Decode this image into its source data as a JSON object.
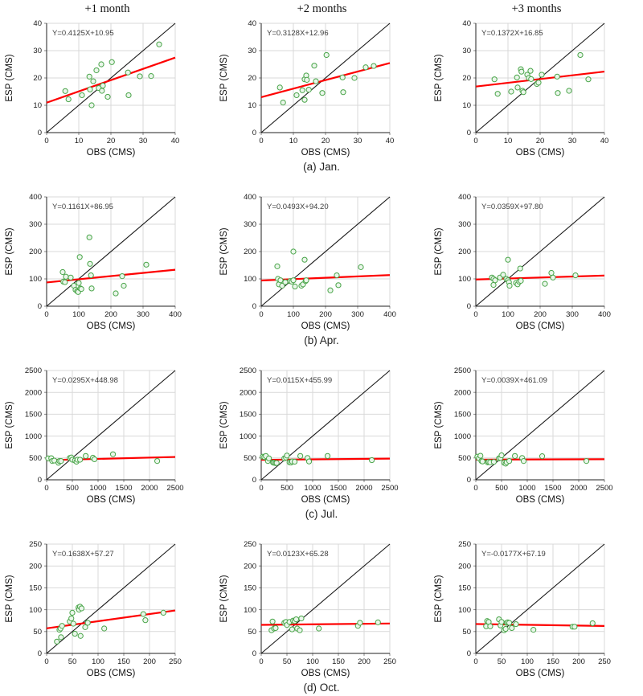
{
  "figure": {
    "column_titles": [
      "+1 month",
      "+2 months",
      "+3 months"
    ],
    "xlabel": "OBS (CMS)",
    "ylabel": "ESP (CMS)",
    "colors": {
      "regression_line": "#fe0000",
      "identity_line": "#1a1a1a",
      "point_stroke": "#4aa54a",
      "point_fill": "#eaf6ea",
      "grid": "#d9d9d9",
      "axis": "#222222",
      "tick": "#888888",
      "equation_text": "#3d3d3d"
    }
  },
  "chart_data": [
    {
      "caption": "(a) Jan.",
      "xlim": [
        0,
        40
      ],
      "ylim": [
        0,
        40
      ],
      "ticks": [
        0,
        10,
        20,
        30,
        40
      ],
      "panels": [
        {
          "type": "scatter",
          "lead": "+1 month",
          "equation": "Y=0.4125X+10.95",
          "slope": 0.4125,
          "intercept": 10.95,
          "points": [
            [
              5.8,
              15.2
            ],
            [
              6.8,
              12.2
            ],
            [
              11,
              13.7
            ],
            [
              13.3,
              20.5
            ],
            [
              13.5,
              15.8
            ],
            [
              14,
              10
            ],
            [
              14.5,
              18.8
            ],
            [
              15.5,
              22.8
            ],
            [
              16.2,
              16.3
            ],
            [
              17,
              25
            ],
            [
              17.2,
              15.3
            ],
            [
              17.5,
              17.2
            ],
            [
              19,
              13.1
            ],
            [
              20.3,
              25.8
            ],
            [
              25.3,
              22
            ],
            [
              25.5,
              13.7
            ],
            [
              29,
              20.6
            ],
            [
              32.5,
              20.7
            ],
            [
              35,
              32.3
            ]
          ]
        },
        {
          "type": "scatter",
          "lead": "+2 months",
          "equation": "Y=0.3128X+12.96",
          "slope": 0.3128,
          "intercept": 12.96,
          "points": [
            [
              5.8,
              16.5
            ],
            [
              6.8,
              11
            ],
            [
              11,
              13.7
            ],
            [
              12.8,
              15.5
            ],
            [
              13.5,
              12
            ],
            [
              13.5,
              19.5
            ],
            [
              14,
              20.9
            ],
            [
              14.2,
              19.3
            ],
            [
              14.8,
              15.7
            ],
            [
              16.5,
              24.5
            ],
            [
              17,
              18.8
            ],
            [
              19,
              14.5
            ],
            [
              20.3,
              28.4
            ],
            [
              25.3,
              20.2
            ],
            [
              25.5,
              14.8
            ],
            [
              29,
              20
            ],
            [
              32.5,
              23.9
            ],
            [
              35,
              24.4
            ]
          ]
        },
        {
          "type": "scatter",
          "lead": "+3 months",
          "equation": "Y=0.1372X+16.85",
          "slope": 0.1372,
          "intercept": 16.85,
          "points": [
            [
              5.8,
              19.5
            ],
            [
              6.8,
              14.2
            ],
            [
              11,
              15
            ],
            [
              12.8,
              20.2
            ],
            [
              13,
              16.5
            ],
            [
              14,
              23.2
            ],
            [
              14.2,
              22.3
            ],
            [
              14.5,
              15.3
            ],
            [
              14.8,
              14.8
            ],
            [
              16,
              21.2
            ],
            [
              16.5,
              20
            ],
            [
              17,
              22.6
            ],
            [
              17.2,
              19.6
            ],
            [
              19,
              17.8
            ],
            [
              19.5,
              18.3
            ],
            [
              20.5,
              21.2
            ],
            [
              25.3,
              20.5
            ],
            [
              25.5,
              14.5
            ],
            [
              29,
              15.3
            ],
            [
              32.5,
              28.4
            ],
            [
              35,
              19.5
            ]
          ]
        }
      ]
    },
    {
      "caption": "(b) Apr.",
      "xlim": [
        0,
        400
      ],
      "ylim": [
        0,
        400
      ],
      "ticks": [
        0,
        100,
        200,
        300,
        400
      ],
      "panels": [
        {
          "type": "scatter",
          "lead": "+1 month",
          "equation": "Y=0.1161X+86.95",
          "slope": 0.1161,
          "intercept": 86.95,
          "points": [
            [
              50,
              125
            ],
            [
              52,
              90
            ],
            [
              57,
              88
            ],
            [
              60,
              108
            ],
            [
              75,
              105
            ],
            [
              85,
              75
            ],
            [
              90,
              60
            ],
            [
              95,
              55
            ],
            [
              98,
              52
            ],
            [
              100,
              85
            ],
            [
              103,
              180
            ],
            [
              105,
              65
            ],
            [
              108,
              63
            ],
            [
              133,
              252
            ],
            [
              135,
              155
            ],
            [
              138,
              113
            ],
            [
              140,
              65
            ],
            [
              215,
              47
            ],
            [
              235,
              110
            ],
            [
              240,
              75
            ],
            [
              310,
              152
            ]
          ]
        },
        {
          "type": "scatter",
          "lead": "+2 months",
          "equation": "Y=0.0493X+94.20",
          "slope": 0.0493,
          "intercept": 94.2,
          "points": [
            [
              50,
              146
            ],
            [
              52,
              100
            ],
            [
              55,
              80
            ],
            [
              60,
              95
            ],
            [
              65,
              75
            ],
            [
              75,
              88
            ],
            [
              90,
              92
            ],
            [
              95,
              90
            ],
            [
              100,
              200
            ],
            [
              100,
              95
            ],
            [
              105,
              72
            ],
            [
              125,
              75
            ],
            [
              130,
              80
            ],
            [
              135,
              170
            ],
            [
              138,
              92
            ],
            [
              140,
              95
            ],
            [
              215,
              58
            ],
            [
              235,
              113
            ],
            [
              240,
              77
            ],
            [
              310,
              143
            ]
          ]
        },
        {
          "type": "scatter",
          "lead": "+3 months",
          "equation": "Y=0.0359X+97.80",
          "slope": 0.0359,
          "intercept": 97.8,
          "points": [
            [
              50,
              105
            ],
            [
              55,
              100
            ],
            [
              55,
              78
            ],
            [
              60,
              95
            ],
            [
              75,
              105
            ],
            [
              85,
              115
            ],
            [
              95,
              100
            ],
            [
              100,
              170
            ],
            [
              100,
              95
            ],
            [
              103,
              88
            ],
            [
              105,
              75
            ],
            [
              125,
              85
            ],
            [
              130,
              80
            ],
            [
              135,
              90
            ],
            [
              138,
              138
            ],
            [
              140,
              93
            ],
            [
              215,
              82
            ],
            [
              235,
              122
            ],
            [
              240,
              105
            ],
            [
              310,
              113
            ]
          ]
        }
      ]
    },
    {
      "caption": "(c) Jul.",
      "xlim": [
        0,
        2500
      ],
      "ylim": [
        0,
        2500
      ],
      "ticks": [
        0,
        500,
        1000,
        1500,
        2000,
        2500
      ],
      "panels": [
        {
          "type": "scatter",
          "lead": "+1 month",
          "equation": "Y=0.0295X+448.98",
          "slope": 0.0295,
          "intercept": 448.98,
          "points": [
            [
              30,
              490
            ],
            [
              90,
              495
            ],
            [
              110,
              430
            ],
            [
              150,
              440
            ],
            [
              230,
              390
            ],
            [
              250,
              430
            ],
            [
              280,
              430
            ],
            [
              450,
              500
            ],
            [
              480,
              510
            ],
            [
              500,
              460
            ],
            [
              550,
              440
            ],
            [
              580,
              415
            ],
            [
              600,
              460
            ],
            [
              650,
              460
            ],
            [
              760,
              545
            ],
            [
              900,
              505
            ],
            [
              930,
              470
            ],
            [
              1290,
              585
            ],
            [
              2150,
              430
            ]
          ]
        },
        {
          "type": "scatter",
          "lead": "+2 months",
          "equation": "Y=0.0115X+455.99",
          "slope": 0.0115,
          "intercept": 455.99,
          "points": [
            [
              30,
              530
            ],
            [
              60,
              520
            ],
            [
              90,
              545
            ],
            [
              130,
              430
            ],
            [
              150,
              490
            ],
            [
              230,
              395
            ],
            [
              250,
              390
            ],
            [
              280,
              380
            ],
            [
              300,
              385
            ],
            [
              450,
              490
            ],
            [
              480,
              510
            ],
            [
              500,
              555
            ],
            [
              550,
              400
            ],
            [
              580,
              395
            ],
            [
              600,
              420
            ],
            [
              650,
              415
            ],
            [
              760,
              545
            ],
            [
              900,
              500
            ],
            [
              930,
              420
            ],
            [
              1290,
              545
            ],
            [
              2150,
              450
            ]
          ]
        },
        {
          "type": "scatter",
          "lead": "+3 months",
          "equation": "Y=0.0039X+461.09",
          "slope": 0.0039,
          "intercept": 461.09,
          "points": [
            [
              30,
              530
            ],
            [
              60,
              490
            ],
            [
              90,
              550
            ],
            [
              110,
              430
            ],
            [
              130,
              420
            ],
            [
              230,
              400
            ],
            [
              250,
              410
            ],
            [
              280,
              400
            ],
            [
              350,
              410
            ],
            [
              450,
              490
            ],
            [
              480,
              500
            ],
            [
              500,
              560
            ],
            [
              550,
              390
            ],
            [
              580,
              370
            ],
            [
              600,
              400
            ],
            [
              650,
              430
            ],
            [
              760,
              545
            ],
            [
              900,
              500
            ],
            [
              930,
              430
            ],
            [
              1290,
              540
            ],
            [
              2150,
              430
            ]
          ]
        }
      ]
    },
    {
      "caption": "(d) Oct.",
      "xlim": [
        0,
        250
      ],
      "ylim": [
        0,
        250
      ],
      "ticks": [
        0,
        50,
        100,
        150,
        200,
        250
      ],
      "panels": [
        {
          "type": "scatter",
          "lead": "+1 month",
          "equation": "Y=0.1638X+57.27",
          "slope": 0.1638,
          "intercept": 57.27,
          "points": [
            [
              20,
              27
            ],
            [
              25,
              54
            ],
            [
              27,
              57
            ],
            [
              28,
              37
            ],
            [
              30,
              63
            ],
            [
              45,
              73
            ],
            [
              48,
              80
            ],
            [
              50,
              93
            ],
            [
              52,
              68
            ],
            [
              55,
              45
            ],
            [
              62,
              105
            ],
            [
              63,
              100
            ],
            [
              65,
              107
            ],
            [
              66,
              40
            ],
            [
              68,
              103
            ],
            [
              75,
              60
            ],
            [
              80,
              70
            ],
            [
              112,
              57
            ],
            [
              188,
              90
            ],
            [
              192,
              76
            ],
            [
              227,
              93
            ]
          ]
        },
        {
          "type": "scatter",
          "lead": "+2 months",
          "equation": "Y=0.0123X+65.28",
          "slope": 0.0123,
          "intercept": 65.28,
          "points": [
            [
              20,
              53
            ],
            [
              22,
              73
            ],
            [
              25,
              57
            ],
            [
              28,
              58
            ],
            [
              45,
              70
            ],
            [
              48,
              72
            ],
            [
              50,
              65
            ],
            [
              55,
              72
            ],
            [
              60,
              55
            ],
            [
              62,
              75
            ],
            [
              65,
              74
            ],
            [
              68,
              78
            ],
            [
              70,
              57
            ],
            [
              75,
              53
            ],
            [
              78,
              80
            ],
            [
              112,
              57
            ],
            [
              188,
              63
            ],
            [
              192,
              70
            ],
            [
              227,
              71
            ]
          ]
        },
        {
          "type": "scatter",
          "lead": "+3 months",
          "equation": "Y=-0.0177X+67.19",
          "slope": -0.0177,
          "intercept": 67.19,
          "points": [
            [
              20,
              62
            ],
            [
              22,
              74
            ],
            [
              25,
              72
            ],
            [
              28,
              62
            ],
            [
              45,
              78
            ],
            [
              48,
              64
            ],
            [
              50,
              72
            ],
            [
              55,
              53
            ],
            [
              58,
              56
            ],
            [
              60,
              70
            ],
            [
              62,
              71
            ],
            [
              65,
              70
            ],
            [
              70,
              58
            ],
            [
              78,
              67
            ],
            [
              112,
              54
            ],
            [
              188,
              61
            ],
            [
              192,
              61
            ],
            [
              227,
              69
            ]
          ]
        }
      ]
    }
  ]
}
